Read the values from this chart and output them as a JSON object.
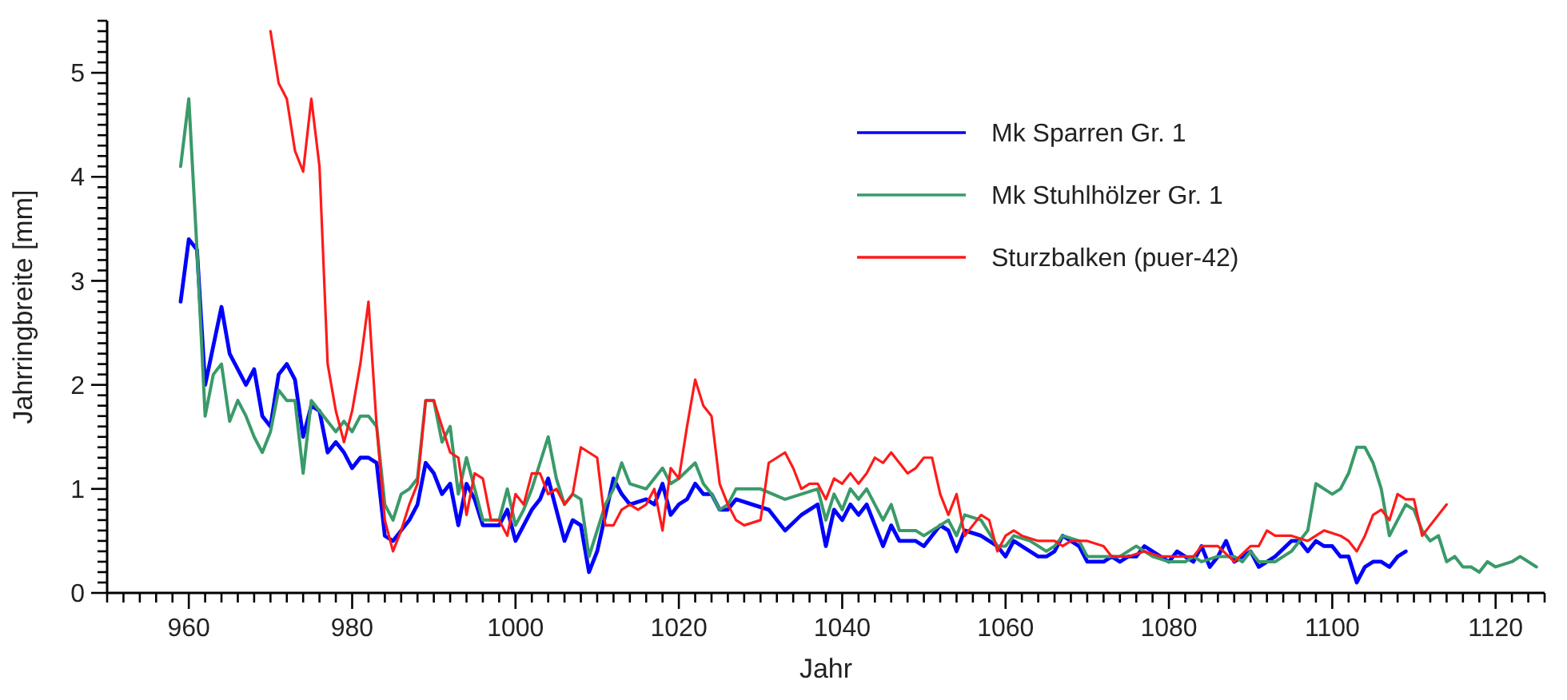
{
  "chart_data": {
    "type": "line",
    "xlabel": "Jahr",
    "ylabel": "Jahrringbreite [mm]",
    "legend": "top right",
    "grid": false,
    "line_style": "solid",
    "xlim": [
      950,
      1126
    ],
    "ylim": [
      0,
      5.5
    ],
    "xticks": [
      {
        "value": 950,
        "label": null
      },
      {
        "value": 952,
        "label": null
      },
      {
        "value": 954,
        "label": null
      },
      {
        "value": 956,
        "label": null
      },
      {
        "value": 958,
        "label": null
      },
      960,
      {
        "value": 962,
        "label": null
      },
      {
        "value": 964,
        "label": null
      },
      {
        "value": 966,
        "label": null
      },
      {
        "value": 968,
        "label": null
      },
      {
        "value": 970,
        "label": null
      },
      {
        "value": 972,
        "label": null
      },
      {
        "value": 974,
        "label": null
      },
      {
        "value": 976,
        "label": null
      },
      {
        "value": 978,
        "label": null
      },
      980,
      {
        "value": 982,
        "label": null
      },
      {
        "value": 984,
        "label": null
      },
      {
        "value": 986,
        "label": null
      },
      {
        "value": 988,
        "label": null
      },
      {
        "value": 990,
        "label": null
      },
      {
        "value": 992,
        "label": null
      },
      {
        "value": 994,
        "label": null
      },
      {
        "value": 996,
        "label": null
      },
      {
        "value": 998,
        "label": null
      },
      1000,
      {
        "value": 1002,
        "label": null
      },
      {
        "value": 1004,
        "label": null
      },
      {
        "value": 1006,
        "label": null
      },
      {
        "value": 1008,
        "label": null
      },
      {
        "value": 1010,
        "label": null
      },
      {
        "value": 1012,
        "label": null
      },
      {
        "value": 1014,
        "label": null
      },
      {
        "value": 1016,
        "label": null
      },
      {
        "value": 1018,
        "label": null
      },
      1020,
      {
        "value": 1022,
        "label": null
      },
      {
        "value": 1024,
        "label": null
      },
      {
        "value": 1026,
        "label": null
      },
      {
        "value": 1028,
        "label": null
      },
      {
        "value": 1030,
        "label": null
      },
      {
        "value": 1032,
        "label": null
      },
      {
        "value": 1034,
        "label": null
      },
      {
        "value": 1036,
        "label": null
      },
      {
        "value": 1038,
        "label": null
      },
      1040,
      {
        "value": 1042,
        "label": null
      },
      {
        "value": 1044,
        "label": null
      },
      {
        "value": 1046,
        "label": null
      },
      {
        "value": 1048,
        "label": null
      },
      {
        "value": 1050,
        "label": null
      },
      {
        "value": 1052,
        "label": null
      },
      {
        "value": 1054,
        "label": null
      },
      {
        "value": 1056,
        "label": null
      },
      {
        "value": 1058,
        "label": null
      },
      1060,
      {
        "value": 1062,
        "label": null
      },
      {
        "value": 1064,
        "label": null
      },
      {
        "value": 1066,
        "label": null
      },
      {
        "value": 1068,
        "label": null
      },
      {
        "value": 1070,
        "label": null
      },
      {
        "value": 1072,
        "label": null
      },
      {
        "value": 1074,
        "label": null
      },
      {
        "value": 1076,
        "label": null
      },
      {
        "value": 1078,
        "label": null
      },
      1080,
      {
        "value": 1082,
        "label": null
      },
      {
        "value": 1084,
        "label": null
      },
      {
        "value": 1086,
        "label": null
      },
      {
        "value": 1088,
        "label": null
      },
      {
        "value": 1090,
        "label": null
      },
      {
        "value": 1092,
        "label": null
      },
      {
        "value": 1094,
        "label": null
      },
      {
        "value": 1096,
        "label": null
      },
      {
        "value": 1098,
        "label": null
      },
      1100,
      {
        "value": 1102,
        "label": null
      },
      {
        "value": 1104,
        "label": null
      },
      {
        "value": 1106,
        "label": null
      },
      {
        "value": 1108,
        "label": null
      },
      {
        "value": 1110,
        "label": null
      },
      {
        "value": 1112,
        "label": null
      },
      {
        "value": 1114,
        "label": null
      },
      {
        "value": 1116,
        "label": null
      },
      {
        "value": 1118,
        "label": null
      },
      1120,
      {
        "value": 1122,
        "label": null
      },
      {
        "value": 1124,
        "label": null
      },
      {
        "value": 1126,
        "label": null
      }
    ],
    "yticks": [
      0,
      {
        "value": 0.1,
        "label": null
      },
      {
        "value": 0.2,
        "label": null
      },
      {
        "value": 0.3,
        "label": null
      },
      {
        "value": 0.4,
        "label": null
      },
      {
        "value": 0.5,
        "label": null
      },
      {
        "value": 0.6,
        "label": null
      },
      {
        "value": 0.7,
        "label": null
      },
      {
        "value": 0.8,
        "label": null
      },
      {
        "value": 0.9,
        "label": null
      },
      1,
      {
        "value": 1.1,
        "label": null
      },
      {
        "value": 1.2,
        "label": null
      },
      {
        "value": 1.3,
        "label": null
      },
      {
        "value": 1.4,
        "label": null
      },
      {
        "value": 1.5,
        "label": null
      },
      {
        "value": 1.6,
        "label": null
      },
      {
        "value": 1.7,
        "label": null
      },
      {
        "value": 1.8,
        "label": null
      },
      {
        "value": 1.9,
        "label": null
      },
      2,
      {
        "value": 2.1,
        "label": null
      },
      {
        "value": 2.2,
        "label": null
      },
      {
        "value": 2.3,
        "label": null
      },
      {
        "value": 2.4,
        "label": null
      },
      {
        "value": 2.5,
        "label": null
      },
      {
        "value": 2.6,
        "label": null
      },
      {
        "value": 2.7,
        "label": null
      },
      {
        "value": 2.8,
        "label": null
      },
      {
        "value": 2.9,
        "label": null
      },
      3,
      {
        "value": 3.1,
        "label": null
      },
      {
        "value": 3.2,
        "label": null
      },
      {
        "value": 3.3,
        "label": null
      },
      {
        "value": 3.4,
        "label": null
      },
      {
        "value": 3.5,
        "label": null
      },
      {
        "value": 3.6,
        "label": null
      },
      {
        "value": 3.7,
        "label": null
      },
      {
        "value": 3.8,
        "label": null
      },
      {
        "value": 3.9,
        "label": null
      },
      4,
      {
        "value": 4.1,
        "label": null
      },
      {
        "value": 4.2,
        "label": null
      },
      {
        "value": 4.3,
        "label": null
      },
      {
        "value": 4.4,
        "label": null
      },
      {
        "value": 4.5,
        "label": null
      },
      {
        "value": 4.6,
        "label": null
      },
      {
        "value": 4.7,
        "label": null
      },
      {
        "value": 4.8,
        "label": null
      },
      {
        "value": 4.9,
        "label": null
      },
      5,
      {
        "value": 5.1,
        "label": null
      },
      {
        "value": 5.2,
        "label": null
      },
      {
        "value": 5.3,
        "label": null
      },
      {
        "value": 5.4,
        "label": null
      },
      {
        "value": 5.5,
        "label": null
      }
    ],
    "series": [
      {
        "name": "Mk Sparren Gr. 1",
        "color": "#0000ff",
        "x": [
          959,
          960,
          961,
          962,
          964,
          965,
          967,
          968,
          969,
          970,
          971,
          972,
          973,
          974,
          975,
          976,
          977,
          978,
          979,
          980,
          981,
          982,
          983,
          984,
          985,
          986,
          987,
          988,
          989,
          990,
          991,
          992,
          993,
          994,
          995,
          996,
          997,
          998,
          999,
          1000,
          1001,
          1002,
          1003,
          1004,
          1005,
          1006,
          1007,
          1008,
          1009,
          1010,
          1011,
          1012,
          1013,
          1014,
          1016,
          1017,
          1018,
          1019,
          1020,
          1021,
          1022,
          1023,
          1024,
          1025,
          1026,
          1027,
          1029,
          1031,
          1033,
          1035,
          1037,
          1038,
          1039,
          1040,
          1041,
          1042,
          1043,
          1045,
          1046,
          1047,
          1049,
          1050,
          1052,
          1053,
          1054,
          1055,
          1057,
          1059,
          1060,
          1061,
          1062,
          1063,
          1064,
          1065,
          1066,
          1067,
          1068,
          1069,
          1070,
          1072,
          1073,
          1074,
          1075,
          1076,
          1077,
          1078,
          1079,
          1080,
          1081,
          1082,
          1083,
          1084,
          1085,
          1086,
          1087,
          1088,
          1089,
          1090,
          1091,
          1093,
          1095,
          1096,
          1097,
          1098,
          1099,
          1100,
          1101,
          1102,
          1103,
          1104,
          1105,
          1106,
          1107,
          1108,
          1109
        ],
        "values": [
          2.8,
          3.4,
          3.3,
          2.0,
          2.75,
          2.3,
          2.0,
          2.15,
          1.7,
          1.6,
          2.1,
          2.2,
          2.05,
          1.5,
          1.8,
          1.75,
          1.35,
          1.45,
          1.35,
          1.2,
          1.3,
          1.3,
          1.25,
          0.55,
          0.5,
          0.6,
          0.7,
          0.85,
          1.25,
          1.15,
          0.95,
          1.05,
          0.65,
          1.05,
          0.9,
          0.65,
          0.65,
          0.65,
          0.8,
          0.5,
          0.65,
          0.8,
          0.9,
          1.1,
          0.8,
          0.5,
          0.7,
          0.65,
          0.2,
          0.4,
          0.75,
          1.1,
          0.95,
          0.85,
          0.9,
          0.85,
          1.05,
          0.75,
          0.85,
          0.9,
          1.05,
          0.95,
          0.95,
          0.8,
          0.8,
          0.9,
          0.85,
          0.8,
          0.6,
          0.75,
          0.85,
          0.45,
          0.8,
          0.7,
          0.85,
          0.75,
          0.85,
          0.45,
          0.65,
          0.5,
          0.5,
          0.45,
          0.65,
          0.6,
          0.4,
          0.6,
          0.55,
          0.45,
          0.35,
          0.5,
          0.45,
          0.4,
          0.35,
          0.35,
          0.4,
          0.55,
          0.5,
          0.45,
          0.3,
          0.3,
          0.35,
          0.3,
          0.35,
          0.35,
          0.45,
          0.4,
          0.35,
          0.3,
          0.4,
          0.35,
          0.3,
          0.45,
          0.25,
          0.35,
          0.5,
          0.3,
          0.35,
          0.4,
          0.25,
          0.35,
          0.5,
          0.5,
          0.4,
          0.5,
          0.45,
          0.45,
          0.35,
          0.35,
          0.1,
          0.25,
          0.3,
          0.3,
          0.25,
          0.35,
          0.4
        ]
      },
      {
        "name": "Mk Stuhlhölzer Gr. 1",
        "color": "#3a9a6a",
        "x": [
          959,
          960,
          961,
          962,
          963,
          964,
          965,
          966,
          967,
          968,
          969,
          970,
          971,
          972,
          973,
          974,
          975,
          976,
          977,
          978,
          979,
          980,
          981,
          982,
          983,
          984,
          985,
          986,
          987,
          988,
          989,
          990,
          991,
          992,
          993,
          994,
          995,
          996,
          997,
          998,
          999,
          1000,
          1001,
          1002,
          1003,
          1004,
          1005,
          1006,
          1007,
          1008,
          1009,
          1010,
          1011,
          1012,
          1013,
          1014,
          1016,
          1017,
          1018,
          1019,
          1020,
          1022,
          1023,
          1024,
          1025,
          1026,
          1027,
          1030,
          1033,
          1035,
          1037,
          1038,
          1039,
          1040,
          1041,
          1042,
          1043,
          1044,
          1045,
          1046,
          1047,
          1049,
          1050,
          1052,
          1053,
          1054,
          1055,
          1057,
          1059,
          1060,
          1061,
          1063,
          1065,
          1066,
          1067,
          1069,
          1070,
          1072,
          1074,
          1076,
          1077,
          1078,
          1080,
          1082,
          1083,
          1084,
          1086,
          1088,
          1089,
          1090,
          1091,
          1092,
          1093,
          1095,
          1096,
          1097,
          1098,
          1099,
          1100,
          1101,
          1102,
          1103,
          1104,
          1105,
          1106,
          1107,
          1108,
          1109,
          1110,
          1111,
          1112,
          1113,
          1114,
          1115,
          1116,
          1117,
          1118,
          1119,
          1120,
          1122,
          1123,
          1125
        ],
        "values": [
          4.1,
          4.75,
          3.3,
          1.7,
          2.1,
          2.2,
          1.65,
          1.85,
          1.7,
          1.5,
          1.35,
          1.55,
          1.95,
          1.85,
          1.85,
          1.15,
          1.85,
          1.75,
          1.65,
          1.55,
          1.65,
          1.55,
          1.7,
          1.7,
          1.6,
          0.85,
          0.7,
          0.95,
          1.0,
          1.1,
          1.85,
          1.85,
          1.45,
          1.6,
          0.95,
          1.3,
          1.0,
          0.7,
          0.7,
          0.7,
          1.0,
          0.65,
          0.8,
          1.0,
          1.25,
          1.5,
          1.1,
          0.85,
          0.95,
          0.9,
          0.35,
          0.6,
          0.85,
          1.0,
          1.25,
          1.05,
          1.0,
          1.1,
          1.2,
          1.05,
          1.1,
          1.25,
          1.05,
          0.95,
          0.8,
          0.85,
          1.0,
          1.0,
          0.9,
          0.95,
          1.0,
          0.7,
          0.95,
          0.8,
          1.0,
          0.9,
          1.0,
          0.85,
          0.7,
          0.85,
          0.6,
          0.6,
          0.55,
          0.65,
          0.7,
          0.55,
          0.75,
          0.7,
          0.45,
          0.45,
          0.55,
          0.5,
          0.4,
          0.45,
          0.55,
          0.5,
          0.35,
          0.35,
          0.35,
          0.45,
          0.4,
          0.35,
          0.3,
          0.3,
          0.35,
          0.3,
          0.35,
          0.35,
          0.3,
          0.4,
          0.3,
          0.3,
          0.3,
          0.4,
          0.5,
          0.6,
          1.05,
          1.0,
          0.95,
          1.0,
          1.15,
          1.4,
          1.4,
          1.25,
          1.0,
          0.55,
          0.7,
          0.85,
          0.8,
          0.6,
          0.5,
          0.55,
          0.3,
          0.35,
          0.25,
          0.25,
          0.2,
          0.3,
          0.25,
          0.3,
          0.35,
          0.25
        ]
      },
      {
        "name": "Sturzbalken (puer-42)",
        "color": "#ff1a1a",
        "x": [
          970,
          971,
          972,
          973,
          974,
          975,
          976,
          977,
          978,
          979,
          980,
          981,
          982,
          983,
          984,
          985,
          986,
          987,
          988,
          989,
          990,
          991,
          992,
          993,
          994,
          995,
          996,
          997,
          998,
          999,
          1000,
          1001,
          1002,
          1003,
          1004,
          1005,
          1006,
          1007,
          1008,
          1009,
          1010,
          1011,
          1012,
          1013,
          1014,
          1015,
          1016,
          1017,
          1018,
          1019,
          1020,
          1021,
          1022,
          1023,
          1024,
          1025,
          1026,
          1027,
          1028,
          1030,
          1031,
          1032,
          1033,
          1034,
          1035,
          1036,
          1037,
          1038,
          1039,
          1040,
          1041,
          1042,
          1043,
          1044,
          1045,
          1046,
          1047,
          1048,
          1049,
          1050,
          1051,
          1052,
          1053,
          1054,
          1055,
          1056,
          1057,
          1058,
          1059,
          1060,
          1061,
          1062,
          1064,
          1066,
          1067,
          1068,
          1070,
          1072,
          1073,
          1075,
          1077,
          1079,
          1081,
          1083,
          1084,
          1086,
          1088,
          1090,
          1091,
          1092,
          1093,
          1095,
          1097,
          1099,
          1101,
          1102,
          1103,
          1104,
          1105,
          1106,
          1107,
          1108,
          1109,
          1110,
          1111,
          1112,
          1114
        ],
        "values": [
          5.4,
          4.9,
          4.75,
          4.25,
          4.05,
          4.75,
          4.1,
          2.2,
          1.75,
          1.45,
          1.75,
          2.2,
          2.8,
          1.6,
          0.7,
          0.4,
          0.6,
          0.85,
          1.05,
          1.85,
          1.85,
          1.6,
          1.35,
          1.3,
          0.75,
          1.15,
          1.1,
          0.7,
          0.7,
          0.55,
          0.95,
          0.85,
          1.15,
          1.15,
          0.95,
          1.0,
          0.85,
          0.95,
          1.4,
          1.35,
          1.3,
          0.65,
          0.65,
          0.8,
          0.85,
          0.8,
          0.85,
          1.0,
          0.6,
          1.2,
          1.1,
          1.6,
          2.05,
          1.8,
          1.7,
          1.05,
          0.85,
          0.7,
          0.65,
          0.7,
          1.25,
          1.3,
          1.35,
          1.2,
          1.0,
          1.05,
          1.05,
          0.9,
          1.1,
          1.05,
          1.15,
          1.05,
          1.15,
          1.3,
          1.25,
          1.35,
          1.25,
          1.15,
          1.2,
          1.3,
          1.3,
          0.95,
          0.75,
          0.95,
          0.55,
          0.65,
          0.75,
          0.7,
          0.4,
          0.55,
          0.6,
          0.55,
          0.5,
          0.5,
          0.45,
          0.5,
          0.5,
          0.45,
          0.35,
          0.35,
          0.4,
          0.35,
          0.35,
          0.35,
          0.45,
          0.45,
          0.3,
          0.45,
          0.45,
          0.6,
          0.55,
          0.55,
          0.5,
          0.6,
          0.55,
          0.5,
          0.4,
          0.55,
          0.75,
          0.8,
          0.7,
          0.95,
          0.9,
          0.9,
          0.55,
          0.65,
          0.85
        ]
      }
    ]
  }
}
